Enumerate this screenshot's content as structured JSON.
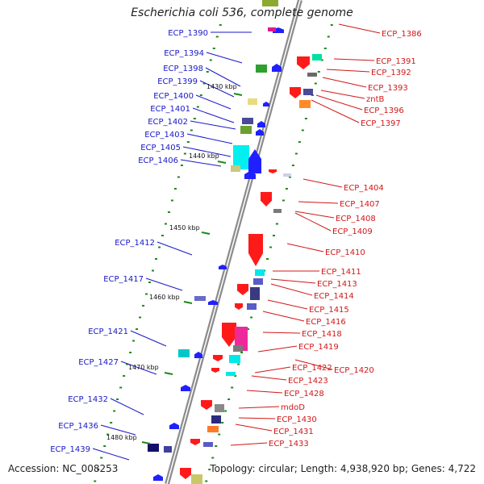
{
  "title": "Escherichia coli 536, complete genome",
  "accession_label": "Accession: NC_008253",
  "topology_label": "Topology: circular; Length: 4,938,920 bp; Genes: 4,722",
  "colors": {
    "left_label": "#1818c8",
    "right_label": "#d01818",
    "backbone": "#8c8c8c",
    "tick": "#1a8a1a"
  },
  "kbp_labels": [
    "1430 kbp",
    "1440 kbp",
    "1450 kbp",
    "1460 kbp",
    "1470 kbp",
    "1480 kbp"
  ],
  "left_genes": [
    "ECP_1390",
    "ECP_1394",
    "ECP_1398",
    "ECP_1399",
    "ECP_1400",
    "ECP_1401",
    "ECP_1402",
    "ECP_1403",
    "ECP_1405",
    "ECP_1406",
    "ECP_1412",
    "ECP_1417",
    "ECP_1421",
    "ECP_1427",
    "ECP_1432",
    "ECP_1436",
    "ECP_1439"
  ],
  "right_genes": [
    "ECP_1386",
    "ECP_1391",
    "ECP_1392",
    "ECP_1393",
    "zntB",
    "ECP_1396",
    "ECP_1397",
    "ECP_1404",
    "ECP_1407",
    "ECP_1408",
    "ECP_1409",
    "ECP_1410",
    "ECP_1411",
    "ECP_1413",
    "ECP_1414",
    "ECP_1415",
    "ECP_1416",
    "ECP_1418",
    "ECP_1419",
    "ECP_1420",
    "ECP_1422",
    "ECP_1423",
    "ECP_1428",
    "mdoD",
    "ECP_1430",
    "ECP_1431",
    "ECP_1433"
  ]
}
